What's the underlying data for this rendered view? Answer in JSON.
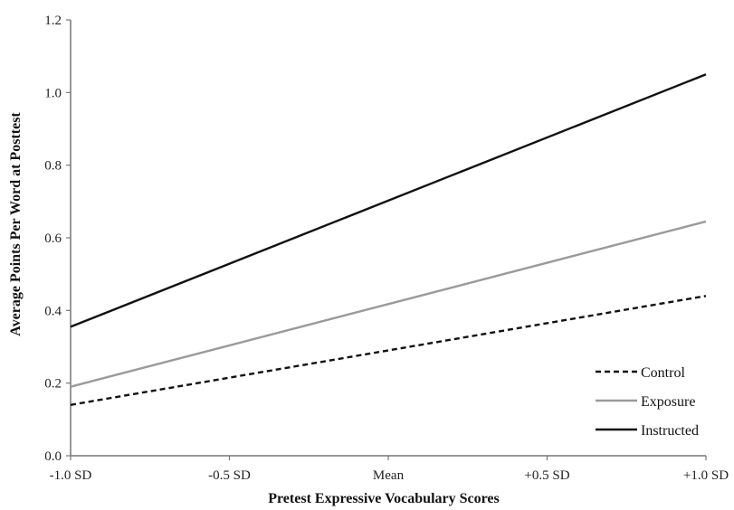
{
  "chart_data": {
    "type": "line",
    "categories": [
      "-1.0 SD",
      "-0.5 SD",
      "Mean",
      "+0.5 SD",
      "+1.0 SD"
    ],
    "x": [
      -1.0,
      1.0
    ],
    "xlabel": "Pretest Expressive Vocabulary Scores",
    "ylabel": "Average Points Per Word at Posttest",
    "ylim": [
      0,
      1.2
    ],
    "yticks": [
      "0.0",
      "0.2",
      "0.4",
      "0.6",
      "0.8",
      "1.0",
      "1.2"
    ],
    "grid": false,
    "legend_position": "bottom-right",
    "series": [
      {
        "name": "Control",
        "values": [
          0.14,
          0.44
        ],
        "color": "#111111",
        "dash": "dashed"
      },
      {
        "name": "Exposure",
        "values": [
          0.19,
          0.645
        ],
        "color": "#9a9a9a",
        "dash": "solid"
      },
      {
        "name": "Instructed",
        "values": [
          0.355,
          1.05
        ],
        "color": "#111111",
        "dash": "solid"
      }
    ]
  }
}
